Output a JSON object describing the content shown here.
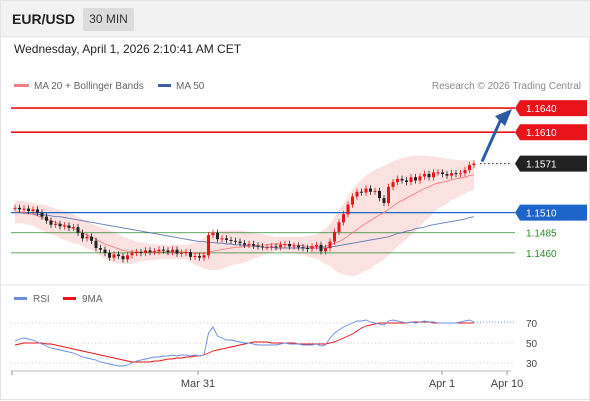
{
  "header": {
    "symbol": "EUR/USD",
    "interval": "30 MIN",
    "datetime": "Wednesday, April 1, 2026 2:10:41 AM CET"
  },
  "legend": {
    "ma20_label": "MA 20 + Bollinger Bands",
    "ma50_label": "MA 50",
    "copyright": "Research © 2026 Trading Central"
  },
  "rsi_legend": {
    "rsi_label": "RSI",
    "ma_label": "9MA"
  },
  "colors": {
    "resistance": "#e8141a",
    "current_price": "#222222",
    "pivot": "#1f64c8",
    "support": "#2a8a2a",
    "ma20": "#f08080",
    "ma50": "#3c5fa6",
    "bands_fill": "#fcdcdc",
    "candle_up": "#e8141a",
    "candle_down": "#222222",
    "forecast_arrow": "#2a5ca6",
    "rsi": "#6a8de0",
    "rsi_ma": "#e8141a"
  },
  "chart_data": [
    {
      "type": "candlestick",
      "title": "",
      "x_tick_labels": [
        "Mar 31",
        "Apr 1",
        "Apr 10"
      ],
      "ylim": [
        1.1425,
        1.1655
      ],
      "levels": [
        {
          "name": "resistance",
          "value": 1.164,
          "label": "1.1640",
          "style": "solid"
        },
        {
          "name": "resistance",
          "value": 1.161,
          "label": "1.1610",
          "style": "solid"
        },
        {
          "name": "current_price",
          "value": 1.1571,
          "label": "1.1571",
          "style": "dotted"
        },
        {
          "name": "pivot",
          "value": 1.151,
          "label": "1.1510",
          "style": "solid"
        },
        {
          "name": "support",
          "value": 1.1485,
          "label": "1.1485",
          "style": "thin"
        },
        {
          "name": "support",
          "value": 1.146,
          "label": "1.1460",
          "style": "thin"
        }
      ],
      "close": [
        1.1516,
        1.1514,
        1.1515,
        1.1512,
        1.1514,
        1.151,
        1.1505,
        1.15,
        1.1495,
        1.1496,
        1.1493,
        1.1494,
        1.1491,
        1.1492,
        1.1485,
        1.1478,
        1.148,
        1.1475,
        1.1466,
        1.1464,
        1.146,
        1.1454,
        1.1458,
        1.1456,
        1.1452,
        1.1457,
        1.146,
        1.1461,
        1.146,
        1.1463,
        1.1461,
        1.1462,
        1.1464,
        1.1463,
        1.1461,
        1.1464,
        1.1459,
        1.146,
        1.1461,
        1.1455,
        1.1456,
        1.1454,
        1.1457,
        1.1482,
        1.1485,
        1.1477,
        1.1478,
        1.1476,
        1.1475,
        1.1474,
        1.1472,
        1.147,
        1.1471,
        1.1469,
        1.1468,
        1.1467,
        1.1467,
        1.1468,
        1.1467,
        1.147,
        1.1471,
        1.1468,
        1.1469,
        1.1467,
        1.1466,
        1.1465,
        1.1468,
        1.147,
        1.1462,
        1.1466,
        1.1474,
        1.1486,
        1.1498,
        1.1508,
        1.152,
        1.153,
        1.1536,
        1.1535,
        1.154,
        1.1536,
        1.1537,
        1.1528,
        1.1522,
        1.1542,
        1.1548,
        1.1552,
        1.155,
        1.1548,
        1.1554,
        1.155,
        1.1555,
        1.1558,
        1.1554,
        1.156,
        1.156,
        1.1558,
        1.1556,
        1.1559,
        1.1558,
        1.1559,
        1.1563,
        1.1569,
        1.1571
      ],
      "ma20": [
        1.1511,
        1.1511,
        1.151,
        1.1509,
        1.1508,
        1.1506,
        1.1504,
        1.1502,
        1.15,
        1.1498,
        1.1496,
        1.1494,
        1.1492,
        1.149,
        1.1488,
        1.1485,
        1.1482,
        1.148,
        1.1477,
        1.1474,
        1.1471,
        1.1469,
        1.1467,
        1.1465,
        1.1463,
        1.1462,
        1.1461,
        1.1461,
        1.1461,
        1.1461,
        1.1461,
        1.1461,
        1.1461,
        1.1461,
        1.1461,
        1.1461,
        1.1461,
        1.1461,
        1.1461,
        1.146,
        1.1459,
        1.1459,
        1.1459,
        1.1461,
        1.1462,
        1.1463,
        1.1464,
        1.1465,
        1.1466,
        1.1467,
        1.1467,
        1.1468,
        1.1468,
        1.1469,
        1.1469,
        1.147,
        1.147,
        1.1471,
        1.1471,
        1.1471,
        1.147,
        1.147,
        1.147,
        1.1469,
        1.1469,
        1.1468,
        1.1468,
        1.1468,
        1.1468,
        1.1468,
        1.147,
        1.1472,
        1.1474,
        1.1477,
        1.1481,
        1.1485,
        1.1489,
        1.1493,
        1.1497,
        1.15,
        1.1504,
        1.1507,
        1.151,
        1.1514,
        1.1518,
        1.1522,
        1.1525,
        1.1528,
        1.1531,
        1.1534,
        1.1537,
        1.154,
        1.1542,
        1.1545,
        1.1547,
        1.1548,
        1.1549,
        1.1551,
        1.1552,
        1.1553,
        1.1554,
        1.1556,
        1.1557
      ],
      "bb_upper": [
        1.1525,
        1.1525,
        1.1524,
        1.1523,
        1.1522,
        1.1521,
        1.152,
        1.1519,
        1.1517,
        1.1515,
        1.1514,
        1.1512,
        1.151,
        1.1508,
        1.1505,
        1.1502,
        1.1499,
        1.1496,
        1.1494,
        1.1492,
        1.149,
        1.1488,
        1.1486,
        1.1483,
        1.148,
        1.1478,
        1.1476,
        1.1474,
        1.1473,
        1.1472,
        1.1471,
        1.1471,
        1.147,
        1.147,
        1.147,
        1.147,
        1.147,
        1.147,
        1.147,
        1.1471,
        1.1473,
        1.1475,
        1.1478,
        1.1483,
        1.1486,
        1.1487,
        1.1488,
        1.1488,
        1.1488,
        1.1488,
        1.1488,
        1.1487,
        1.1486,
        1.1485,
        1.1484,
        1.1483,
        1.1482,
        1.1481,
        1.148,
        1.148,
        1.148,
        1.148,
        1.148,
        1.148,
        1.148,
        1.1481,
        1.1482,
        1.1483,
        1.1486,
        1.149,
        1.1496,
        1.1505,
        1.1513,
        1.1521,
        1.153,
        1.1539,
        1.1546,
        1.1551,
        1.1556,
        1.156,
        1.1563,
        1.1566,
        1.1568,
        1.1571,
        1.1574,
        1.1576,
        1.1578,
        1.1579,
        1.158,
        1.1581,
        1.1581,
        1.1581,
        1.158,
        1.158,
        1.1579,
        1.1578,
        1.1577,
        1.1576,
        1.1576,
        1.1575,
        1.1575,
        1.1575,
        1.1576
      ],
      "bb_lower": [
        1.1497,
        1.1497,
        1.1496,
        1.1495,
        1.1494,
        1.1491,
        1.1488,
        1.1485,
        1.1483,
        1.1481,
        1.1478,
        1.1476,
        1.1474,
        1.1472,
        1.1471,
        1.1468,
        1.1465,
        1.1464,
        1.146,
        1.1456,
        1.1452,
        1.145,
        1.1448,
        1.1447,
        1.1446,
        1.1446,
        1.1446,
        1.1448,
        1.1449,
        1.145,
        1.1451,
        1.1451,
        1.1452,
        1.1452,
        1.1452,
        1.1452,
        1.1452,
        1.1452,
        1.1452,
        1.1449,
        1.1445,
        1.1443,
        1.144,
        1.1439,
        1.1438,
        1.1439,
        1.144,
        1.1442,
        1.1444,
        1.1446,
        1.1446,
        1.1449,
        1.145,
        1.1453,
        1.1454,
        1.1457,
        1.1458,
        1.1461,
        1.1462,
        1.1462,
        1.146,
        1.146,
        1.146,
        1.1458,
        1.1458,
        1.1455,
        1.1454,
        1.1453,
        1.145,
        1.1446,
        1.1444,
        1.1439,
        1.1435,
        1.1433,
        1.1432,
        1.1431,
        1.1432,
        1.1435,
        1.1438,
        1.144,
        1.1445,
        1.1448,
        1.1452,
        1.1457,
        1.1462,
        1.1468,
        1.1472,
        1.1477,
        1.1482,
        1.1487,
        1.1493,
        1.1499,
        1.1504,
        1.151,
        1.1515,
        1.1518,
        1.1521,
        1.1526,
        1.1528,
        1.1531,
        1.1533,
        1.1537,
        1.1538
      ],
      "ma50": [
        1.151,
        1.151,
        1.1509,
        1.1509,
        1.1508,
        1.1508,
        1.1507,
        1.1507,
        1.1506,
        1.1505,
        1.1505,
        1.1504,
        1.1503,
        1.1502,
        1.1501,
        1.15,
        1.1499,
        1.1498,
        1.1497,
        1.1496,
        1.1495,
        1.1494,
        1.1493,
        1.1492,
        1.1491,
        1.149,
        1.1489,
        1.1488,
        1.1487,
        1.1486,
        1.1485,
        1.1484,
        1.1483,
        1.1482,
        1.1481,
        1.148,
        1.1479,
        1.1478,
        1.1477,
        1.1476,
        1.1475,
        1.1474,
        1.1474,
        1.1473,
        1.1473,
        1.1472,
        1.1472,
        1.1471,
        1.1471,
        1.147,
        1.147,
        1.1469,
        1.1469,
        1.1468,
        1.1468,
        1.1467,
        1.1467,
        1.1467,
        1.1466,
        1.1466,
        1.1466,
        1.1466,
        1.1466,
        1.1466,
        1.1466,
        1.1466,
        1.1466,
        1.1466,
        1.1466,
        1.1466,
        1.1467,
        1.1468,
        1.1469,
        1.147,
        1.1471,
        1.1472,
        1.1473,
        1.1474,
        1.1475,
        1.1476,
        1.1477,
        1.1478,
        1.1479,
        1.148,
        1.1482,
        1.1484,
        1.1485,
        1.1487,
        1.1488,
        1.149,
        1.1491,
        1.1492,
        1.1494,
        1.1495,
        1.1496,
        1.1497,
        1.1498,
        1.1499,
        1.15,
        1.1501,
        1.1502,
        1.1504,
        1.1505
      ],
      "forecast_arrow": {
        "from": 1.1571,
        "to": 1.164
      }
    },
    {
      "type": "line",
      "title": "",
      "ylim": [
        20,
        80
      ],
      "y_ticks": [
        70,
        50,
        30
      ],
      "series": [
        {
          "name": "RSI",
          "values": [
            52,
            54,
            55,
            54,
            53,
            51,
            49,
            47,
            45,
            44,
            43,
            42,
            41,
            40,
            38,
            36,
            35,
            34,
            33,
            31,
            30,
            29,
            28,
            27,
            27,
            28,
            30,
            32,
            33,
            34,
            35,
            36,
            36,
            37,
            37,
            38,
            37,
            38,
            38,
            37,
            38,
            37,
            38,
            60,
            66,
            57,
            55,
            53,
            53,
            52,
            51,
            50,
            50,
            49,
            48,
            48,
            48,
            48,
            48,
            49,
            50,
            49,
            49,
            49,
            48,
            48,
            48,
            49,
            47,
            48,
            55,
            60,
            63,
            66,
            68,
            70,
            72,
            72,
            73,
            71,
            70,
            69,
            68,
            72,
            73,
            72,
            71,
            70,
            71,
            70,
            71,
            72,
            71,
            71,
            70,
            70,
            70,
            70,
            70,
            71,
            72,
            73,
            71
          ]
        },
        {
          "name": "9MA",
          "values": [
            48,
            49,
            50,
            50,
            50,
            50,
            50,
            49,
            49,
            48,
            47,
            46,
            45,
            44,
            43,
            42,
            41,
            40,
            39,
            38,
            37,
            36,
            35,
            34,
            33,
            32,
            31,
            31,
            31,
            31,
            31,
            32,
            32,
            33,
            34,
            34,
            35,
            35,
            36,
            36,
            37,
            37,
            38,
            40,
            42,
            43,
            44,
            45,
            46,
            47,
            48,
            49,
            50,
            51,
            51,
            51,
            51,
            50,
            50,
            50,
            50,
            50,
            50,
            49,
            49,
            49,
            49,
            49,
            49,
            49,
            50,
            51,
            53,
            55,
            57,
            59,
            62,
            65,
            67,
            68,
            69,
            70,
            70,
            70,
            70,
            70,
            70,
            70,
            71,
            71,
            71,
            71,
            71,
            70,
            70,
            70,
            70,
            70,
            70,
            70,
            70,
            70,
            70
          ]
        }
      ]
    }
  ]
}
